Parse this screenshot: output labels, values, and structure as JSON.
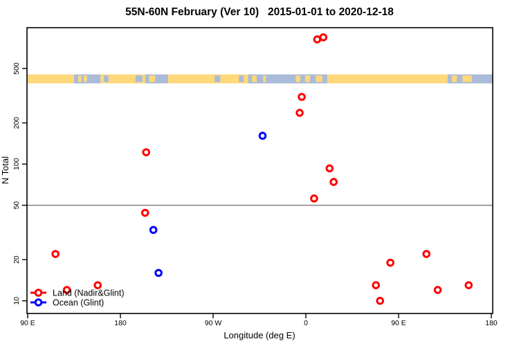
{
  "chart_data": {
    "type": "scatter",
    "title": "55N-60N February (Ver 10)   2015-01-01 to 2020-12-18",
    "xlabel": "Longitude (deg E)",
    "ylabel": "N Total",
    "x_axis": {
      "range_axis_deg": [
        90,
        540
      ],
      "ticks": [
        {
          "axis_deg": 90,
          "label": "90 E"
        },
        {
          "axis_deg": 180,
          "label": "180"
        },
        {
          "axis_deg": 270,
          "label": "90 W"
        },
        {
          "axis_deg": 360,
          "label": "0"
        },
        {
          "axis_deg": 450,
          "label": "90 E"
        },
        {
          "axis_deg": 540,
          "label": "180"
        }
      ]
    },
    "y_axis": {
      "scale": "log",
      "range": [
        8,
        1000
      ],
      "ticks": [
        10,
        20,
        50,
        100,
        200,
        500
      ]
    },
    "reference_line": {
      "y": 50,
      "color": "#808080"
    },
    "legend": {
      "position": "bottom-left",
      "entries": [
        "Land (Nadir&Glint)",
        "Ocean (Glint)"
      ]
    },
    "series": [
      {
        "name": "Land (Nadir&Glint)",
        "color": "#FF0000",
        "symbol": "open-circle",
        "points": [
          {
            "axis_deg": 371,
            "n": 816
          },
          {
            "axis_deg": 377,
            "n": 845
          },
          {
            "axis_deg": 356,
            "n": 310
          },
          {
            "axis_deg": 354,
            "n": 237
          },
          {
            "axis_deg": 205,
            "n": 122
          },
          {
            "axis_deg": 383,
            "n": 93
          },
          {
            "axis_deg": 387,
            "n": 74
          },
          {
            "axis_deg": 368,
            "n": 56
          },
          {
            "axis_deg": 204,
            "n": 44
          },
          {
            "axis_deg": 117,
            "n": 22
          },
          {
            "axis_deg": 477,
            "n": 22
          },
          {
            "axis_deg": 442,
            "n": 19
          },
          {
            "axis_deg": 128,
            "n": 12
          },
          {
            "axis_deg": 158,
            "n": 13
          },
          {
            "axis_deg": 428,
            "n": 13
          },
          {
            "axis_deg": 432,
            "n": 10
          },
          {
            "axis_deg": 488,
            "n": 12
          },
          {
            "axis_deg": 518,
            "n": 13
          }
        ]
      },
      {
        "name": "Ocean (Glint)",
        "color": "#0000FF",
        "symbol": "open-circle",
        "points": [
          {
            "axis_deg": 318,
            "n": 161
          },
          {
            "axis_deg": 212,
            "n": 33
          },
          {
            "axis_deg": 217,
            "n": 16
          }
        ]
      }
    ],
    "map_strip": {
      "land_color": "#FFD87A",
      "ocean_color": "#A9BBD8",
      "segments": [
        {
          "from": 0.0,
          "to": 0.101,
          "surface": "land"
        },
        {
          "from": 0.101,
          "to": 0.158,
          "surface": "ocean"
        },
        {
          "from": 0.158,
          "to": 0.254,
          "surface": "land"
        },
        {
          "from": 0.254,
          "to": 0.303,
          "surface": "ocean"
        },
        {
          "from": 0.303,
          "to": 0.475,
          "surface": "land"
        },
        {
          "from": 0.475,
          "to": 0.645,
          "surface": "ocean"
        },
        {
          "from": 0.645,
          "to": 0.903,
          "surface": "land"
        },
        {
          "from": 0.903,
          "to": 1.0,
          "surface": "ocean"
        }
      ],
      "patches": [
        {
          "from": 0.11,
          "to": 0.117,
          "surface": "land"
        },
        {
          "from": 0.122,
          "to": 0.129,
          "surface": "land"
        },
        {
          "from": 0.165,
          "to": 0.175,
          "surface": "ocean"
        },
        {
          "from": 0.233,
          "to": 0.248,
          "surface": "ocean"
        },
        {
          "from": 0.262,
          "to": 0.275,
          "surface": "land"
        },
        {
          "from": 0.403,
          "to": 0.415,
          "surface": "ocean"
        },
        {
          "from": 0.455,
          "to": 0.465,
          "surface": "ocean"
        },
        {
          "from": 0.483,
          "to": 0.493,
          "surface": "land"
        },
        {
          "from": 0.507,
          "to": 0.513,
          "surface": "land"
        },
        {
          "from": 0.577,
          "to": 0.587,
          "surface": "land"
        },
        {
          "from": 0.597,
          "to": 0.608,
          "surface": "land"
        },
        {
          "from": 0.62,
          "to": 0.634,
          "surface": "land"
        },
        {
          "from": 0.912,
          "to": 0.923,
          "surface": "land"
        },
        {
          "from": 0.935,
          "to": 0.955,
          "surface": "land"
        }
      ]
    }
  }
}
